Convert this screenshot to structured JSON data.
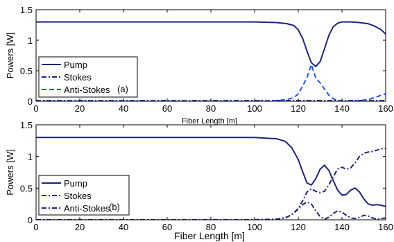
{
  "chart_data": [
    {
      "type": "line",
      "panel_label": "(a)",
      "xlabel": "Fiber Length [m]",
      "ylabel": "Powers [W]",
      "xlim": [
        0,
        160
      ],
      "ylim": [
        0,
        1.5
      ],
      "xticks": [
        0,
        20,
        40,
        60,
        80,
        100,
        120,
        140,
        160
      ],
      "yticks": [
        0,
        0.5,
        1,
        1.5
      ],
      "grid": false,
      "legend_position": "bottom-left",
      "series": [
        {
          "name": "Pump",
          "color": "#1a237e",
          "style": "solid",
          "x": [
            0,
            20,
            40,
            60,
            80,
            100,
            110,
            115,
            118,
            120,
            122,
            124,
            126,
            128,
            130,
            132,
            134,
            136,
            138,
            140,
            144,
            148,
            152,
            155,
            158,
            160
          ],
          "y": [
            1.3,
            1.3,
            1.3,
            1.3,
            1.3,
            1.3,
            1.29,
            1.27,
            1.24,
            1.17,
            1.03,
            0.82,
            0.63,
            0.57,
            0.65,
            0.86,
            1.08,
            1.22,
            1.28,
            1.3,
            1.3,
            1.29,
            1.27,
            1.23,
            1.17,
            1.1
          ]
        },
        {
          "name": "Stokes",
          "color": "#1a237e",
          "style": "dashdot",
          "x": [
            0,
            20,
            40,
            60,
            80,
            100,
            160
          ],
          "y": [
            0.01,
            0.01,
            0.01,
            0.01,
            0.01,
            0.01,
            0.01
          ]
        },
        {
          "name": "Anti-Stokes",
          "color": "#2255ee",
          "style": "dashed",
          "x": [
            0,
            20,
            40,
            60,
            80,
            100,
            110,
            115,
            118,
            120,
            122,
            124,
            126,
            128,
            130,
            132,
            134,
            136,
            138,
            140,
            144,
            148,
            152,
            155,
            158,
            160
          ],
          "y": [
            0.0,
            0.0,
            0.0,
            0.0,
            0.0,
            0.0,
            0.01,
            0.03,
            0.06,
            0.12,
            0.25,
            0.39,
            0.6,
            0.38,
            0.3,
            0.2,
            0.1,
            0.04,
            0.01,
            0.0,
            0.0,
            0.01,
            0.03,
            0.06,
            0.1,
            0.12
          ]
        }
      ]
    },
    {
      "type": "line",
      "panel_label": "(b)",
      "xlabel": "Fiber Length [m]",
      "ylabel": "Powers [W]",
      "xlim": [
        0,
        160
      ],
      "ylim": [
        0,
        1.5
      ],
      "xticks": [
        0,
        20,
        40,
        60,
        80,
        100,
        120,
        140,
        160
      ],
      "yticks": [
        0,
        0.5,
        1,
        1.5
      ],
      "grid": false,
      "legend_position": "bottom-left",
      "series": [
        {
          "name": "Pump",
          "color": "#1a237e",
          "style": "solid",
          "x": [
            0,
            20,
            40,
            60,
            80,
            100,
            110,
            114,
            117,
            120,
            122,
            124,
            126,
            128,
            130,
            132,
            134,
            136,
            138,
            140,
            142,
            144,
            146,
            148,
            150,
            152,
            154,
            156,
            158,
            160
          ],
          "y": [
            1.3,
            1.3,
            1.3,
            1.3,
            1.3,
            1.3,
            1.28,
            1.24,
            1.14,
            0.95,
            0.76,
            0.58,
            0.55,
            0.65,
            0.8,
            0.86,
            0.78,
            0.62,
            0.47,
            0.39,
            0.4,
            0.47,
            0.5,
            0.44,
            0.33,
            0.25,
            0.23,
            0.24,
            0.23,
            0.21
          ]
        },
        {
          "name": "Stokes",
          "color": "#1a237e",
          "style": "dashdot",
          "x": [
            0,
            20,
            40,
            60,
            80,
            100,
            110,
            114,
            117,
            120,
            122,
            124,
            126,
            128,
            130,
            132,
            134,
            136,
            138,
            140,
            142,
            144,
            146,
            148,
            150,
            152,
            154,
            156,
            158,
            160
          ],
          "y": [
            0.0,
            0.0,
            0.0,
            0.0,
            0.0,
            0.0,
            0.01,
            0.03,
            0.08,
            0.18,
            0.3,
            0.44,
            0.49,
            0.45,
            0.43,
            0.45,
            0.55,
            0.68,
            0.8,
            0.83,
            0.8,
            0.82,
            0.9,
            1.0,
            1.05,
            1.07,
            1.08,
            1.1,
            1.12,
            1.13
          ]
        },
        {
          "name": "Anti-Stokes",
          "color": "#1a237e",
          "style": "dashdot",
          "x": [
            0,
            20,
            40,
            60,
            80,
            100,
            110,
            114,
            117,
            120,
            122,
            124,
            126,
            128,
            130,
            132,
            134,
            136,
            138,
            140,
            142,
            144,
            146,
            148,
            150,
            152,
            154,
            156,
            158,
            160
          ],
          "y": [
            0.0,
            0.0,
            0.0,
            0.0,
            0.0,
            0.0,
            0.01,
            0.03,
            0.08,
            0.17,
            0.24,
            0.28,
            0.25,
            0.14,
            0.05,
            0.01,
            0.04,
            0.1,
            0.14,
            0.12,
            0.07,
            0.03,
            0.02,
            0.04,
            0.07,
            0.06,
            0.03,
            0.01,
            0.02,
            0.03
          ]
        }
      ]
    }
  ]
}
